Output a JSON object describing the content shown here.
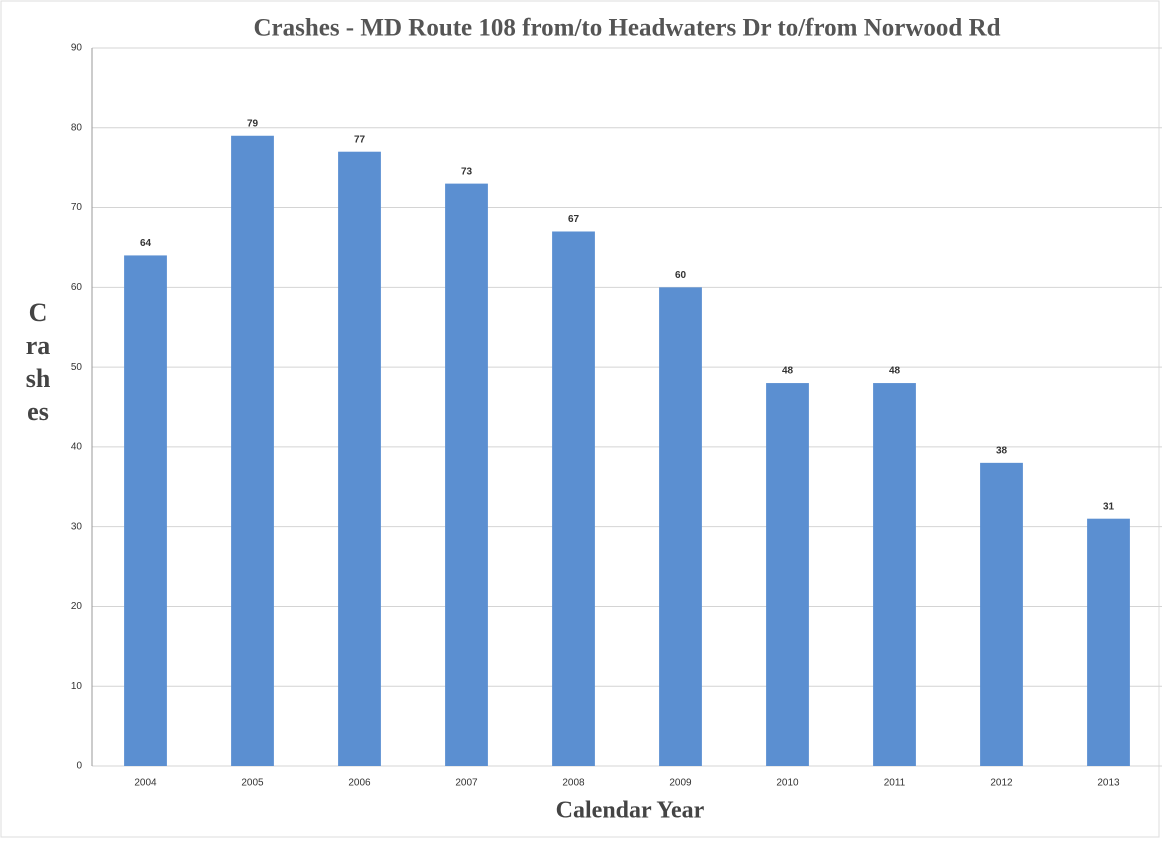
{
  "chart_data": {
    "type": "bar",
    "title": "Crashes - MD Route 108 from/to Headwaters Dr to/from Norwood Rd",
    "x_label": "Calendar Year",
    "y_label": "Crashes",
    "categories": [
      "2004",
      "2005",
      "2006",
      "2007",
      "2008",
      "2009",
      "2010",
      "2011",
      "2012",
      "2013"
    ],
    "values": [
      64,
      79,
      77,
      73,
      67,
      60,
      48,
      48,
      38,
      31
    ],
    "color": "#5b8fd1",
    "ylim": [
      0,
      90
    ],
    "yticks": [
      0,
      10,
      20,
      30,
      40,
      50,
      60,
      70,
      80,
      90
    ],
    "grid": true
  }
}
